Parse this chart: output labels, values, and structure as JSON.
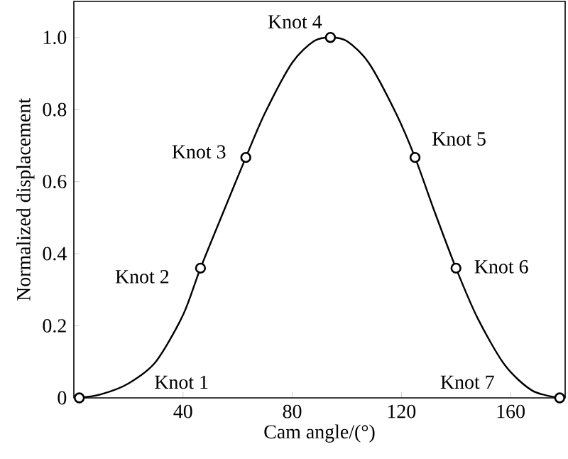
{
  "chart_data": {
    "type": "line",
    "xlabel": "Cam angle/(°)",
    "ylabel": "Normalized displacement",
    "xlim": [
      0,
      180
    ],
    "ylim": [
      0,
      1.1
    ],
    "xticks": [
      40,
      80,
      120,
      160
    ],
    "yticks": [
      0,
      0.2,
      0.4,
      0.6,
      0.8,
      {
        "value": 1.0,
        "label": "1.0"
      }
    ],
    "tick_labels": "xy",
    "grid": false,
    "series": [
      {
        "color": "#000000",
        "marker": "none",
        "x": [
          2,
          10,
          20,
          30,
          40,
          46.4,
          55,
          63,
          70,
          80,
          88,
          94,
          100,
          108,
          118,
          125,
          132,
          140,
          148,
          158,
          168,
          178
        ],
        "values": [
          0,
          0.01,
          0.04,
          0.1,
          0.23,
          0.36,
          0.52,
          0.667,
          0.79,
          0.93,
          0.99,
          1.0,
          0.99,
          0.93,
          0.79,
          0.667,
          0.52,
          0.36,
          0.22,
          0.09,
          0.02,
          0
        ]
      },
      {
        "type": "scatter",
        "color": "#000000",
        "marker": "circle",
        "x": [
          2,
          46.4,
          63,
          94,
          125,
          140,
          178
        ],
        "values": [
          0,
          0.36,
          0.667,
          1.0,
          0.667,
          0.36,
          0
        ]
      }
    ],
    "annotations": [
      "Knot 1",
      "Knot 2",
      "Knot 3",
      "Knot 4",
      "Knot 5",
      "Knot 6",
      "Knot 7"
    ]
  }
}
